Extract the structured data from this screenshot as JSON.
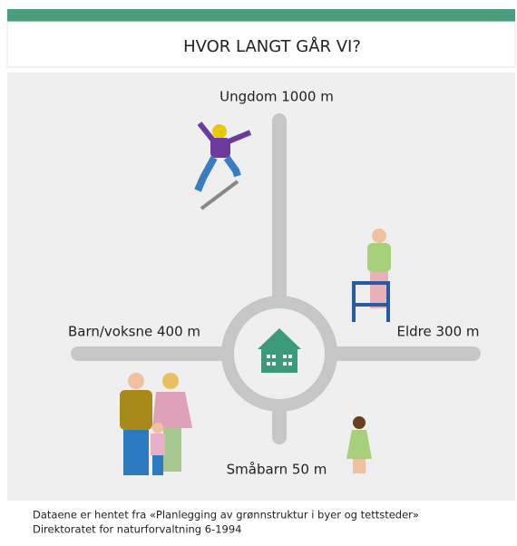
{
  "header": {
    "title": "HVOR LANGT GÅR VI?"
  },
  "labels": [
    "Ungdom 1000 m",
    "Barn/voksne 400 m",
    "Eldre 300 m",
    "Småbarn 50 m"
  ],
  "source": [
    "Dataene er hentet fra «Planlegging av grønnstruktur i byer og tettsteder»",
    "Direktoratet for naturforvaltning 6-1994"
  ]
}
